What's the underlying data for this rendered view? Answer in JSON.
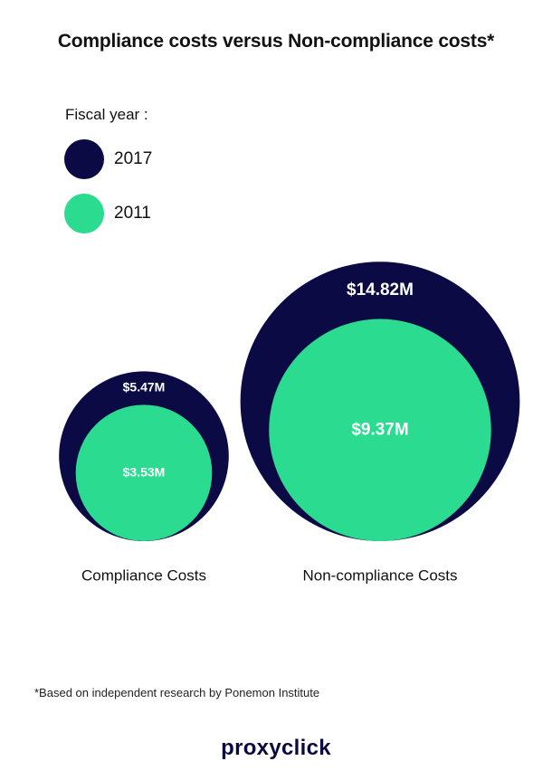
{
  "chart_data": {
    "type": "bubble",
    "title": "Compliance costs versus Non-compliance costs*",
    "legend_title": "Fiscal year :",
    "series": [
      {
        "name": "2017",
        "color": "#0b0a45"
      },
      {
        "name": "2011",
        "color": "#2adb90"
      }
    ],
    "categories": [
      "Compliance Costs",
      "Non-compliance Costs"
    ],
    "values": {
      "2017": [
        5.47,
        14.82
      ],
      "2011": [
        3.53,
        9.37
      ]
    },
    "value_labels": {
      "2017": [
        "$5.47M",
        "$14.82M"
      ],
      "2011": [
        "$3.53M",
        "$9.37M"
      ]
    },
    "unit": "$M"
  },
  "footnote": "*Based on independent research by Ponemon Institute",
  "brand": "proxyclick"
}
